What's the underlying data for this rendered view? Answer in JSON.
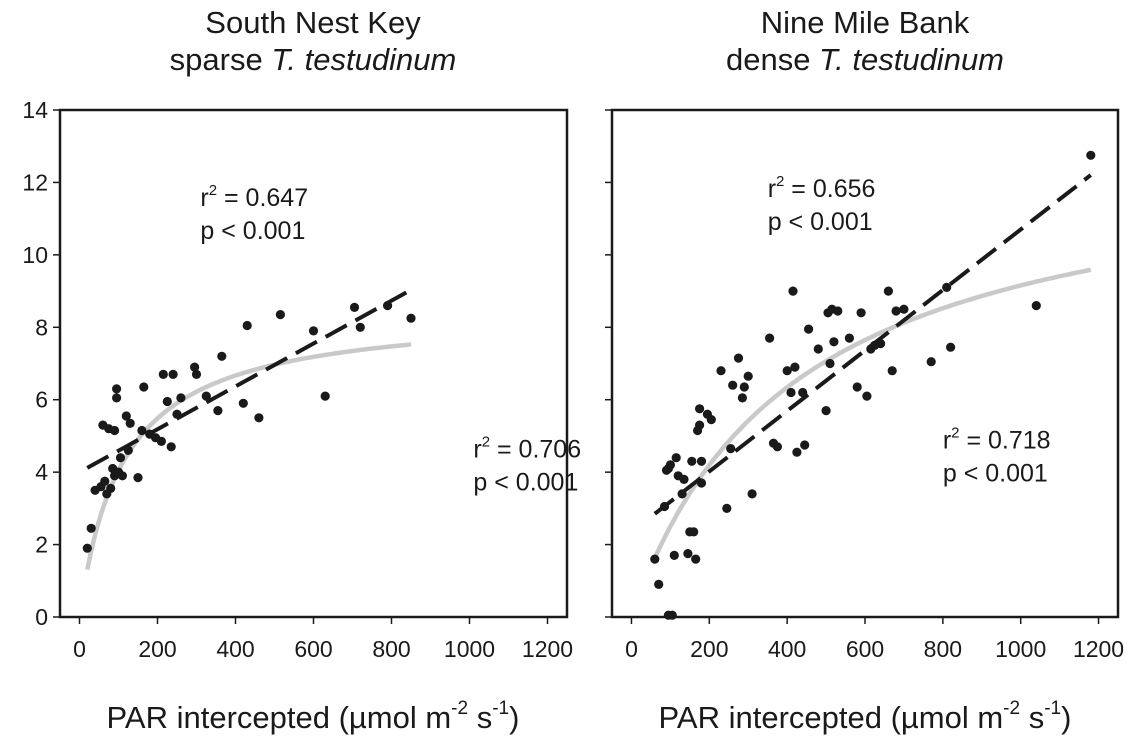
{
  "chart_data": [
    {
      "type": "scatter",
      "title": "South Nest Key",
      "subtitle_plain": "sparse ",
      "subtitle_italic": "T. testudinum",
      "xlabel": "PAR intercepted (µmol m",
      "xlabel_exp1": "-2",
      "xlabel_mid": " s",
      "xlabel_exp2": "-1",
      "xlabel_end": ")",
      "ylabel": "",
      "xlim": [
        -50,
        1250
      ],
      "ylim": [
        0,
        14
      ],
      "xticks": [
        0,
        200,
        400,
        600,
        800,
        1000,
        1200
      ],
      "yticks": [
        0,
        2,
        4,
        6,
        8,
        10,
        12,
        14
      ],
      "show_y_tick_labels": true,
      "grid": false,
      "linear_fit": {
        "x0": 20,
        "x1": 850,
        "intercept": 4.0,
        "slope": 0.00592
      },
      "curve_fit": {
        "x0": 20,
        "x1": 850,
        "a": 8.5,
        "b": 110
      },
      "annotations": [
        {
          "label": "r",
          "exp": "2",
          "value": " = 0.647",
          "p": "p <  0.001",
          "x": 310,
          "y": 11.35
        },
        {
          "label": "r",
          "exp": "2",
          "value": " = 0.706",
          "p": "p <  0.001",
          "x": 1010,
          "y": 4.4
        }
      ],
      "points": [
        [
          20,
          1.9
        ],
        [
          30,
          2.45
        ],
        [
          40,
          3.5
        ],
        [
          55,
          3.6
        ],
        [
          60,
          5.3
        ],
        [
          65,
          3.75
        ],
        [
          70,
          3.4
        ],
        [
          75,
          5.2
        ],
        [
          80,
          3.55
        ],
        [
          85,
          4.1
        ],
        [
          90,
          5.15
        ],
        [
          90,
          3.9
        ],
        [
          95,
          6.05
        ],
        [
          95,
          6.3
        ],
        [
          100,
          4.0
        ],
        [
          105,
          4.4
        ],
        [
          110,
          3.9
        ],
        [
          120,
          5.55
        ],
        [
          125,
          4.6
        ],
        [
          130,
          5.35
        ],
        [
          150,
          3.85
        ],
        [
          160,
          5.15
        ],
        [
          165,
          6.35
        ],
        [
          180,
          5.05
        ],
        [
          195,
          4.95
        ],
        [
          210,
          4.85
        ],
        [
          215,
          6.7
        ],
        [
          225,
          5.95
        ],
        [
          235,
          4.7
        ],
        [
          240,
          6.7
        ],
        [
          250,
          5.6
        ],
        [
          260,
          6.05
        ],
        [
          295,
          6.9
        ],
        [
          300,
          6.7
        ],
        [
          325,
          6.1
        ],
        [
          355,
          5.7
        ],
        [
          365,
          7.2
        ],
        [
          420,
          5.9
        ],
        [
          430,
          8.05
        ],
        [
          460,
          5.5
        ],
        [
          515,
          8.35
        ],
        [
          600,
          7.9
        ],
        [
          630,
          6.1
        ],
        [
          705,
          8.55
        ],
        [
          720,
          8.0
        ],
        [
          790,
          8.6
        ],
        [
          850,
          8.25
        ]
      ]
    },
    {
      "type": "scatter",
      "title": "Nine Mile Bank",
      "subtitle_plain": "dense ",
      "subtitle_italic": "T. testudinum",
      "xlabel": "PAR intercepted (µmol m",
      "xlabel_exp1": "-2",
      "xlabel_mid": " s",
      "xlabel_exp2": "-1",
      "xlabel_end": ")",
      "ylabel": "",
      "xlim": [
        -50,
        1250
      ],
      "ylim": [
        0,
        14
      ],
      "xticks": [
        0,
        200,
        400,
        600,
        800,
        1000,
        1200
      ],
      "yticks": [
        0,
        2,
        4,
        6,
        8,
        10,
        12,
        14
      ],
      "show_y_tick_labels": false,
      "grid": false,
      "linear_fit": {
        "x0": 60,
        "x1": 1180,
        "intercept": 2.35,
        "slope": 0.00835
      },
      "curve_fit": {
        "x0": 60,
        "x1": 1180,
        "a": 13.0,
        "b": 420
      },
      "annotations": [
        {
          "label": "r",
          "exp": "2",
          "value": " = 0.656",
          "p": "p <  0.001",
          "x": 350,
          "y": 11.6
        },
        {
          "label": "r",
          "exp": "2",
          "value": " = 0.718",
          "p": "p <  0.001",
          "x": 800,
          "y": 4.65
        }
      ],
      "points": [
        [
          60,
          1.6
        ],
        [
          70,
          0.9
        ],
        [
          85,
          3.05
        ],
        [
          90,
          4.05
        ],
        [
          95,
          4.1
        ],
        [
          95,
          0.05
        ],
        [
          100,
          4.2
        ],
        [
          105,
          0.05
        ],
        [
          110,
          1.7
        ],
        [
          115,
          4.4
        ],
        [
          120,
          3.9
        ],
        [
          130,
          3.4
        ],
        [
          135,
          3.8
        ],
        [
          145,
          1.75
        ],
        [
          150,
          2.35
        ],
        [
          155,
          4.3
        ],
        [
          160,
          2.35
        ],
        [
          165,
          1.6
        ],
        [
          170,
          5.15
        ],
        [
          175,
          5.75
        ],
        [
          175,
          5.3
        ],
        [
          180,
          4.3
        ],
        [
          180,
          3.7
        ],
        [
          195,
          5.6
        ],
        [
          205,
          5.45
        ],
        [
          230,
          6.8
        ],
        [
          245,
          3.0
        ],
        [
          255,
          4.65
        ],
        [
          260,
          6.4
        ],
        [
          275,
          7.15
        ],
        [
          285,
          6.05
        ],
        [
          290,
          6.35
        ],
        [
          300,
          6.65
        ],
        [
          310,
          3.4
        ],
        [
          355,
          7.7
        ],
        [
          365,
          4.8
        ],
        [
          375,
          4.7
        ],
        [
          400,
          6.8
        ],
        [
          410,
          6.2
        ],
        [
          415,
          9.0
        ],
        [
          420,
          6.9
        ],
        [
          425,
          4.55
        ],
        [
          440,
          6.2
        ],
        [
          445,
          4.75
        ],
        [
          455,
          7.95
        ],
        [
          480,
          7.4
        ],
        [
          500,
          5.7
        ],
        [
          505,
          8.4
        ],
        [
          510,
          7.0
        ],
        [
          515,
          8.5
        ],
        [
          520,
          7.6
        ],
        [
          530,
          8.45
        ],
        [
          560,
          7.7
        ],
        [
          580,
          6.35
        ],
        [
          590,
          8.4
        ],
        [
          605,
          6.1
        ],
        [
          615,
          7.4
        ],
        [
          625,
          7.5
        ],
        [
          640,
          7.55
        ],
        [
          660,
          9.0
        ],
        [
          670,
          6.8
        ],
        [
          680,
          8.45
        ],
        [
          700,
          8.5
        ],
        [
          770,
          7.05
        ],
        [
          810,
          9.1
        ],
        [
          820,
          7.45
        ],
        [
          1040,
          8.6
        ],
        [
          1180,
          12.75
        ]
      ]
    }
  ]
}
